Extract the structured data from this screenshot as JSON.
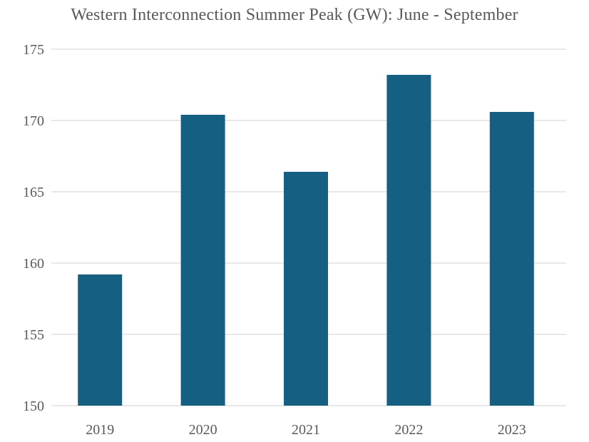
{
  "chart_data": {
    "type": "bar",
    "title": "Western Interconnection Summer Peak (GW): June - September",
    "xlabel": "",
    "ylabel": "",
    "categories": [
      "2019",
      "2020",
      "2021",
      "2022",
      "2023"
    ],
    "values": [
      159.2,
      170.4,
      166.4,
      173.2,
      170.6
    ],
    "ylim": [
      150,
      175
    ],
    "yticks": [
      150,
      155,
      160,
      165,
      170,
      175
    ],
    "grid": true,
    "bar_color": "#155f82",
    "gridline_color": "#d9d9d9"
  }
}
